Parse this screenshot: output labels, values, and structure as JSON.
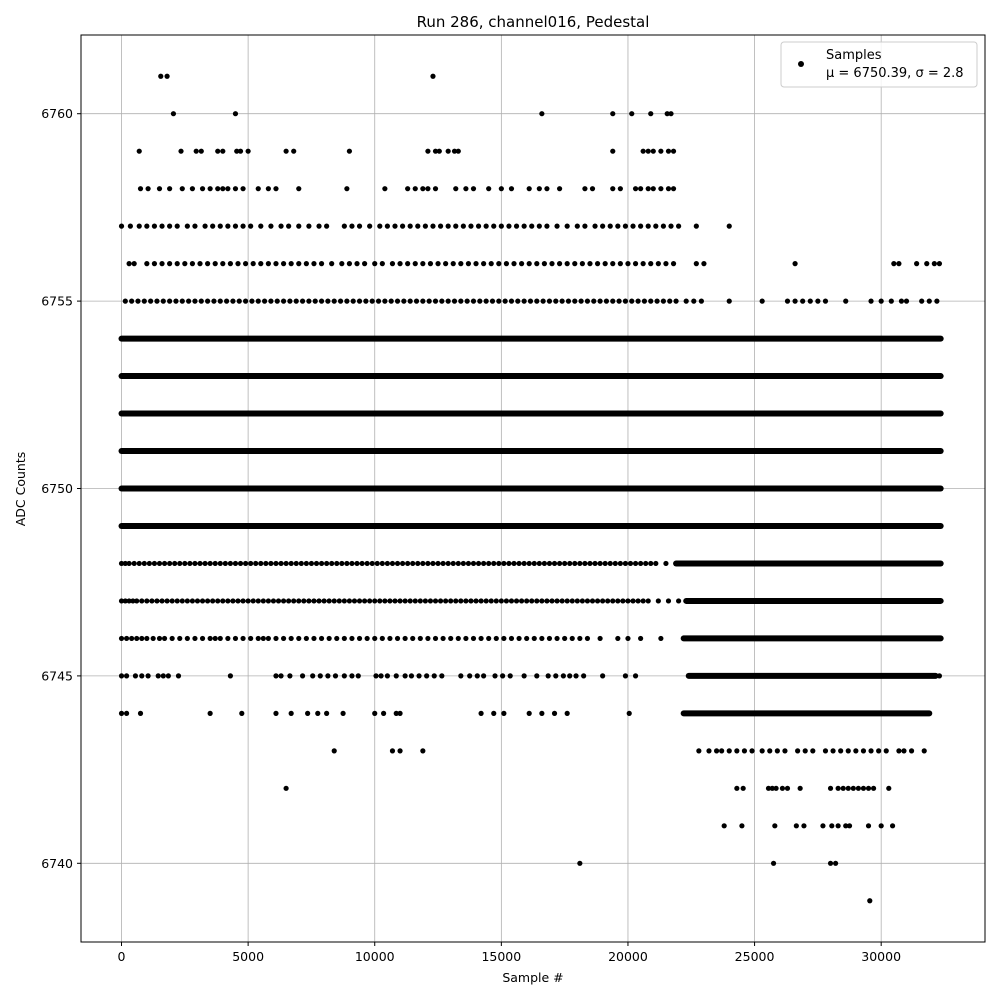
{
  "chart_data": {
    "type": "scatter",
    "title": "Run 286, channel016, Pedestal",
    "xlabel": "Sample #",
    "ylabel": "ADC Counts",
    "xlim": [
      -1600,
      34100
    ],
    "ylim": [
      6737.9,
      6762.1
    ],
    "xticks": [
      0,
      5000,
      10000,
      15000,
      20000,
      25000,
      30000
    ],
    "xtick_labels": [
      "0",
      "5000",
      "10000",
      "15000",
      "20000",
      "25000",
      "30000"
    ],
    "yticks": [
      6740,
      6745,
      6750,
      6755,
      6760
    ],
    "ytick_labels": [
      "6740",
      "6745",
      "6750",
      "6755",
      "6760"
    ],
    "grid": true,
    "legend": {
      "placement": "top-right",
      "entries": [
        {
          "line1": "Samples",
          "line2": "μ = 6750.39, σ = 2.8"
        }
      ]
    },
    "series": [
      {
        "name": "Samples",
        "color": "#000000",
        "marker": "circle",
        "bands": [
          {
            "y": 6739,
            "x": [
              29550
            ]
          },
          {
            "y": 6740,
            "x": [
              18100,
              25750,
              28000,
              28200
            ]
          },
          {
            "y": 6741,
            "x": [
              23800,
              24500,
              25800,
              26650,
              26950,
              27700,
              28050,
              28300,
              28600,
              28750,
              29500,
              30000,
              30450
            ]
          },
          {
            "y": 6742,
            "x": [
              6500,
              24300,
              24550,
              25550,
              25700,
              25850,
              26100,
              26300,
              26800,
              28000,
              28300,
              28500,
              28700,
              28900,
              29100,
              29300,
              29500,
              29700,
              30300
            ]
          },
          {
            "y": 6743,
            "x": [
              8400,
              10700,
              11000,
              11900,
              22800,
              23200,
              23500,
              23700,
              24000,
              24300,
              24600,
              24900,
              25300,
              25600,
              25900,
              26200,
              26700,
              27000,
              27300,
              27800,
              28100,
              28400,
              28700,
              29000,
              29300,
              29600,
              29900,
              30200,
              30700,
              30900,
              31200,
              31700
            ]
          },
          {
            "y": 6744,
            "x": [
              0,
              200,
              750,
              3500,
              4750,
              6100,
              6700,
              7350,
              7750,
              8100,
              8750,
              10000,
              10350,
              10850,
              11000,
              14200,
              14700,
              15100,
              16100,
              16600,
              17100,
              17600,
              20050
            ]
          },
          {
            "y": 6745,
            "x": [
              0,
              200,
              550,
              800,
              1050,
              1450,
              1650,
              1850,
              2250,
              4300,
              6100,
              6300,
              6650,
              7150,
              7550,
              7850,
              8150,
              8450,
              8800,
              9100,
              9350,
              10050,
              10250,
              10500,
              10850,
              11200,
              11450,
              11750,
              12050,
              12350,
              12650,
              13400,
              13750,
              14050,
              14300,
              14750,
              15050,
              15350,
              15900,
              16400,
              16850,
              17150,
              17450,
              17700,
              17950,
              18250,
              19000,
              19900,
              20300,
              32300
            ]
          },
          {
            "y": 6746,
            "x": [
              0,
              200,
              400,
              600,
              800,
              1000,
              1250,
              1500,
              1700,
              2000,
              2300,
              2600,
              2900,
              3200,
              3500,
              3700,
              3900,
              4200,
              4500,
              4800,
              5100,
              5400,
              5600,
              5800,
              6100,
              6400,
              6700,
              7000,
              7300,
              7600,
              7900,
              8200,
              8500,
              8800,
              9100,
              9400,
              9700,
              10000,
              10300,
              10600,
              10900,
              11200,
              11500,
              11800,
              12100,
              12400,
              12700,
              13000,
              13300,
              13600,
              13900,
              14200,
              14500,
              14800,
              15100,
              15400,
              15700,
              16000,
              16300,
              16600,
              16900,
              17200,
              17500,
              17800,
              18100,
              18400,
              18900,
              19600,
              20000,
              20500,
              21300
            ]
          },
          {
            "y": 6747,
            "x": [
              0,
              150,
              300,
              450,
              600,
              800,
              1000,
              1200,
              1400,
              1600,
              1800,
              2000,
              2200,
              2400,
              2600,
              2800,
              3000,
              3200,
              3400,
              3600,
              3800,
              4000,
              4200,
              4400,
              4600,
              4800,
              5000,
              5200,
              5400,
              5600,
              5800,
              6000,
              6200,
              6400,
              6600,
              6800,
              7000,
              7200,
              7400,
              7600,
              7800,
              8000,
              8200,
              8400,
              8600,
              8800,
              9000,
              9200,
              9400,
              9600,
              9800,
              10000,
              10200,
              10400,
              10600,
              10800,
              11000,
              11200,
              11400,
              11600,
              11800,
              12000,
              12200,
              12400,
              12600,
              12800,
              13000,
              13200,
              13400,
              13600,
              13800,
              14000,
              14200,
              14400,
              14600,
              14800,
              15000,
              15200,
              15400,
              15600,
              15800,
              16000,
              16200,
              16400,
              16600,
              16800,
              17000,
              17200,
              17400,
              17600,
              17800,
              18000,
              18200,
              18400,
              18600,
              18800,
              19000,
              19200,
              19400,
              19600,
              19800,
              20000,
              20200,
              20400,
              20600,
              20800,
              21200,
              21600,
              22000
            ]
          },
          {
            "y": 6748,
            "x": [
              0,
              150,
              300,
              500,
              700,
              900,
              1100,
              1300,
              1500,
              1700,
              1900,
              2100,
              2300,
              2500,
              2700,
              2900,
              3100,
              3300,
              3500,
              3700,
              3900,
              4100,
              4300,
              4500,
              4700,
              4900,
              5100,
              5300,
              5500,
              5700,
              5900,
              6100,
              6300,
              6500,
              6700,
              6900,
              7100,
              7300,
              7500,
              7700,
              7900,
              8100,
              8300,
              8500,
              8700,
              8900,
              9100,
              9300,
              9500,
              9700,
              9900,
              10100,
              10300,
              10500,
              10700,
              10900,
              11100,
              11300,
              11500,
              11700,
              11900,
              12100,
              12300,
              12500,
              12700,
              12900,
              13100,
              13300,
              13500,
              13700,
              13900,
              14100,
              14300,
              14500,
              14700,
              14900,
              15100,
              15300,
              15500,
              15700,
              15900,
              16100,
              16300,
              16500,
              16700,
              16900,
              17100,
              17300,
              17500,
              17700,
              17900,
              18100,
              18300,
              18500,
              18700,
              18900,
              19100,
              19300,
              19500,
              19700,
              19900,
              20100,
              20300,
              20500,
              20700,
              20900,
              21100,
              21500,
              21900
            ]
          },
          {
            "y": 6755,
            "x": [
              150,
              400,
              650,
              900,
              1150,
              1400,
              1650,
              1900,
              2150,
              2400,
              2650,
              2900,
              3150,
              3400,
              3650,
              3900,
              4150,
              4400,
              4650,
              4900,
              5150,
              5400,
              5650,
              5900,
              6150,
              6400,
              6650,
              6900,
              7150,
              7400,
              7650,
              7900,
              8150,
              8400,
              8650,
              8900,
              9150,
              9400,
              9650,
              9900,
              10150,
              10400,
              10650,
              10900,
              11150,
              11400,
              11650,
              11900,
              12150,
              12400,
              12650,
              12900,
              13150,
              13400,
              13650,
              13900,
              14150,
              14400,
              14650,
              14900,
              15150,
              15400,
              15650,
              15900,
              16150,
              16400,
              16650,
              16900,
              17150,
              17400,
              17650,
              17900,
              18150,
              18400,
              18650,
              18900,
              19150,
              19400,
              19650,
              19900,
              20150,
              20400,
              20650,
              20900,
              21150,
              21400,
              21650,
              21900,
              22300,
              22600,
              22900,
              24000,
              25300,
              26300,
              26600,
              26900,
              27200,
              27500,
              27800,
              28600,
              29600,
              30000,
              30400,
              30800,
              31000,
              31600,
              31900,
              32200
            ]
          },
          {
            "y": 6756,
            "x": [
              300,
              500,
              1000,
              1300,
              1600,
              1900,
              2200,
              2500,
              2800,
              3100,
              3400,
              3700,
              4000,
              4300,
              4600,
              4900,
              5200,
              5500,
              5800,
              6100,
              6400,
              6700,
              7000,
              7300,
              7600,
              7900,
              8300,
              8700,
              9000,
              9300,
              9600,
              10000,
              10300,
              10700,
              11000,
              11300,
              11600,
              11900,
              12200,
              12500,
              12800,
              13100,
              13400,
              13700,
              14000,
              14300,
              14600,
              14900,
              15200,
              15500,
              15800,
              16100,
              16400,
              16700,
              17000,
              17300,
              17600,
              17900,
              18200,
              18500,
              18800,
              19100,
              19400,
              19700,
              20000,
              20300,
              20600,
              20900,
              21200,
              21500,
              21800,
              22700,
              23000,
              26600,
              30500,
              30700,
              31400,
              31800,
              32100,
              32300
            ]
          },
          {
            "y": 6757,
            "x": [
              0,
              350,
              700,
              1000,
              1300,
              1600,
              1900,
              2200,
              2600,
              2900,
              3300,
              3600,
              3900,
              4200,
              4500,
              4800,
              5100,
              5500,
              5900,
              6300,
              6600,
              7000,
              7400,
              7800,
              8100,
              8800,
              9100,
              9400,
              9800,
              10200,
              10500,
              10800,
              11100,
              11400,
              11700,
              12000,
              12300,
              12600,
              12900,
              13200,
              13500,
              13800,
              14100,
              14400,
              14700,
              15000,
              15300,
              15600,
              15900,
              16200,
              16500,
              16800,
              17200,
              17600,
              18000,
              18300,
              18700,
              19000,
              19300,
              19600,
              19900,
              20200,
              20500,
              20800,
              21100,
              21400,
              21700,
              22000,
              22700,
              24000
            ]
          },
          {
            "y": 6758,
            "x": [
              750,
              1050,
              1500,
              1900,
              2400,
              2800,
              3200,
              3500,
              3800,
              4000,
              4200,
              4500,
              4800,
              5400,
              5800,
              6100,
              7000,
              8900,
              10400,
              11300,
              11600,
              11900,
              12100,
              12400,
              13200,
              13600,
              13900,
              14500,
              15000,
              15400,
              16100,
              16500,
              16800,
              17300,
              18300,
              18600,
              19400,
              19700,
              20300,
              20500,
              20800,
              21000,
              21300,
              21600,
              21800
            ]
          },
          {
            "y": 6759,
            "x": [
              700,
              2350,
              2950,
              3150,
              3800,
              4000,
              4550,
              4700,
              5000,
              6500,
              6800,
              9000,
              12100,
              12400,
              12550,
              12900,
              13150,
              13300,
              19400,
              20600,
              20800,
              21000,
              21300,
              21600,
              21800
            ]
          },
          {
            "y": 6760,
            "x": [
              2050,
              4500,
              16600,
              19400,
              20150,
              20900,
              21550,
              21700
            ]
          },
          {
            "y": 6761,
            "x": [
              1550,
              1800,
              12300
            ]
          }
        ],
        "dense_bands": [
          {
            "y": 6749,
            "x_range": [
              0,
              32350
            ]
          },
          {
            "y": 6750,
            "x_range": [
              0,
              32350
            ]
          },
          {
            "y": 6751,
            "x_range": [
              0,
              32350
            ]
          },
          {
            "y": 6752,
            "x_range": [
              0,
              32350
            ]
          },
          {
            "y": 6753,
            "x_range": [
              0,
              32350
            ]
          },
          {
            "y": 6754,
            "x_range": [
              0,
              32350
            ]
          },
          {
            "y": 6747,
            "x_range": [
              22300,
              32350
            ]
          },
          {
            "y": 6748,
            "x_range": [
              21900,
              32350
            ]
          },
          {
            "y": 6746,
            "x_range": [
              22200,
              32350
            ]
          },
          {
            "y": 6745,
            "x_range": [
              22400,
              32150
            ]
          },
          {
            "y": 6744,
            "x_range": [
              22200,
              31900
            ]
          }
        ]
      }
    ]
  }
}
